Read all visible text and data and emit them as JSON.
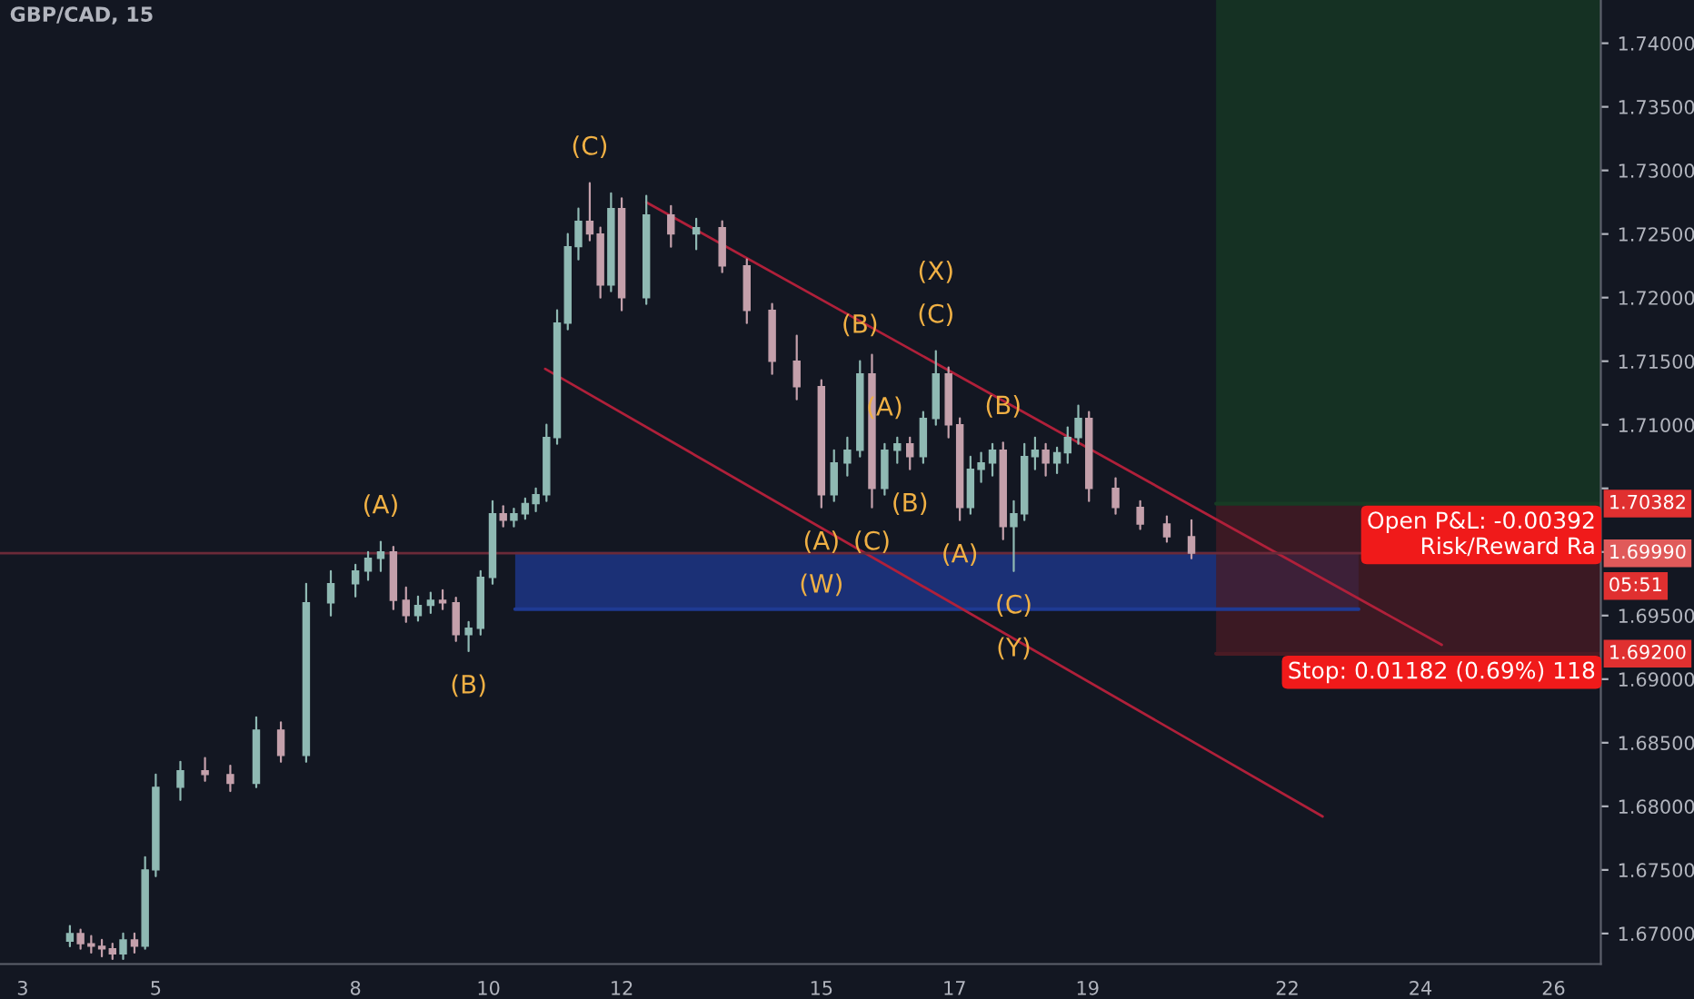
{
  "chart_data": {
    "type": "candlestick",
    "title": "GBP/CAD, 15",
    "xlim": [
      2.66,
      26.71
    ],
    "ylim": [
      1.6676,
      1.7434
    ],
    "xticks": [
      3,
      5,
      8,
      10,
      12,
      15,
      17,
      19,
      22,
      24,
      26
    ],
    "yticks": [
      {
        "value": 1.67,
        "label": "1.67000"
      },
      {
        "value": 1.675,
        "label": "1.67500"
      },
      {
        "value": 1.68,
        "label": "1.68000"
      },
      {
        "value": 1.685,
        "label": "1.68500"
      },
      {
        "value": 1.69,
        "label": "1.69000"
      },
      {
        "value": 1.695,
        "label": "1.69500"
      },
      {
        "value": 1.7,
        "label": null
      },
      {
        "value": 1.705,
        "label": null
      },
      {
        "value": 1.71,
        "label": "1.71000"
      },
      {
        "value": 1.715,
        "label": "1.71500"
      },
      {
        "value": 1.72,
        "label": "1.72000"
      },
      {
        "value": 1.725,
        "label": "1.72500"
      },
      {
        "value": 1.73,
        "label": "1.73000"
      },
      {
        "value": 1.735,
        "label": "1.73500"
      },
      {
        "value": 1.74,
        "label": "1.74000"
      }
    ],
    "grid": false,
    "series": [
      {
        "type": "line",
        "color": "#1f3a93",
        "x": [
          10.4,
          23.07
        ],
        "values": [
          1.6955,
          1.6955
        ],
        "upper": [
          1.7,
          1.7
        ],
        "lower": [
          1.6955,
          1.6955
        ]
      },
      {
        "type": "line",
        "color": "#173b24",
        "x": [
          20.93,
          26.71
        ],
        "values": [
          1.7038,
          1.7038
        ],
        "upper": [
          1.7434,
          1.7434
        ],
        "lower": [
          1.7038,
          1.7038
        ]
      },
      {
        "type": "line",
        "color": "#4a1b24",
        "x": [
          20.93,
          26.71
        ],
        "values": [
          1.692,
          1.692
        ],
        "upper": [
          1.7038,
          1.7038
        ],
        "lower": [
          1.692,
          1.692
        ]
      },
      {
        "type": "line",
        "color": "#b0203a",
        "x": [
          12.37,
          24.32
        ],
        "values": [
          1.7275,
          1.6927
        ]
      },
      {
        "type": "line",
        "color": "#b0203a",
        "x": [
          10.85,
          22.53
        ],
        "values": [
          1.7144,
          1.6792
        ]
      },
      {
        "x": [
          3.71,
          3.87,
          4.03,
          4.19,
          4.35,
          4.51,
          4.68,
          4.84,
          5.0,
          5.37,
          5.74,
          6.12,
          6.51,
          6.88,
          7.26,
          7.63,
          8.0,
          8.19,
          8.38,
          8.57,
          8.76,
          8.94,
          9.13,
          9.31,
          9.51,
          9.7,
          9.88,
          10.06,
          10.22,
          10.38,
          10.55,
          10.71,
          10.87,
          11.03,
          11.19,
          11.35,
          11.52,
          11.68,
          11.84,
          12.0,
          12.37,
          12.74,
          13.12,
          13.51,
          13.88,
          14.26,
          14.63,
          15.0,
          15.19,
          15.39,
          15.58,
          15.76,
          15.95,
          16.14,
          16.33,
          16.53,
          16.72,
          16.91,
          17.08,
          17.24,
          17.4,
          17.57,
          17.73,
          17.89,
          18.05,
          18.21,
          18.37,
          18.54,
          18.7,
          18.86,
          19.02,
          19.42,
          19.79,
          20.19,
          20.56
        ],
        "colors": [
          "#8fb9b3",
          "#c4a0ab",
          "#c4a0ab",
          "#c4a0ab",
          "#c4a0ab",
          "#8fb9b3",
          "#c4a0ab",
          "#8fb9b3",
          "#8fb9b3",
          "#8fb9b3",
          "#c4a0ab",
          "#c4a0ab",
          "#8fb9b3",
          "#c4a0ab",
          "#8fb9b3",
          "#8fb9b3",
          "#8fb9b3",
          "#8fb9b3",
          "#8fb9b3",
          "#c4a0ab",
          "#c4a0ab",
          "#8fb9b3",
          "#8fb9b3",
          "#c4a0ab",
          "#c4a0ab",
          "#8fb9b3",
          "#8fb9b3",
          "#8fb9b3",
          "#c4a0ab",
          "#8fb9b3",
          "#8fb9b3",
          "#8fb9b3",
          "#8fb9b3",
          "#8fb9b3",
          "#8fb9b3",
          "#8fb9b3",
          "#c4a0ab",
          "#c4a0ab",
          "#8fb9b3",
          "#c4a0ab",
          "#8fb9b3",
          "#c4a0ab",
          "#8fb9b3",
          "#c4a0ab",
          "#c4a0ab",
          "#c4a0ab",
          "#c4a0ab",
          "#c4a0ab",
          "#8fb9b3",
          "#8fb9b3",
          "#8fb9b3",
          "#c4a0ab",
          "#8fb9b3",
          "#8fb9b3",
          "#c4a0ab",
          "#8fb9b3",
          "#8fb9b3",
          "#c4a0ab",
          "#c4a0ab",
          "#8fb9b3",
          "#8fb9b3",
          "#8fb9b3",
          "#c4a0ab",
          "#8fb9b3",
          "#8fb9b3",
          "#8fb9b3",
          "#c4a0ab",
          "#8fb9b3",
          "#8fb9b3",
          "#8fb9b3",
          "#c4a0ab",
          "#c4a0ab",
          "#c4a0ab",
          "#c4a0ab",
          "#c4a0ab"
        ],
        "ohlc": [
          [
            1.6694,
            1.6706,
            1.669,
            1.67
          ],
          [
            1.67,
            1.6703,
            1.6688,
            1.6692
          ],
          [
            1.6692,
            1.6698,
            1.6685,
            1.669
          ],
          [
            1.669,
            1.6695,
            1.6682,
            1.6688
          ],
          [
            1.6688,
            1.6692,
            1.668,
            1.6684
          ],
          [
            1.6684,
            1.67,
            1.668,
            1.6695
          ],
          [
            1.6695,
            1.67,
            1.6685,
            1.669
          ],
          [
            1.669,
            1.676,
            1.6688,
            1.675
          ],
          [
            1.675,
            1.6825,
            1.6745,
            1.6815
          ],
          [
            1.6815,
            1.6835,
            1.6805,
            1.6828
          ],
          [
            1.6828,
            1.6838,
            1.682,
            1.6825
          ],
          [
            1.6825,
            1.6832,
            1.6812,
            1.6818
          ],
          [
            1.6818,
            1.687,
            1.6815,
            1.686
          ],
          [
            1.686,
            1.6866,
            1.6835,
            1.684
          ],
          [
            1.684,
            1.6975,
            1.6835,
            1.696
          ],
          [
            1.696,
            1.6985,
            1.695,
            1.6975
          ],
          [
            1.6975,
            1.699,
            1.6965,
            1.6985
          ],
          [
            1.6985,
            1.7,
            1.6978,
            1.6995
          ],
          [
            1.6995,
            1.7008,
            1.6985,
            1.7
          ],
          [
            1.7,
            1.7004,
            1.6955,
            1.6962
          ],
          [
            1.6962,
            1.6972,
            1.6945,
            1.695
          ],
          [
            1.695,
            1.6965,
            1.6946,
            1.6958
          ],
          [
            1.6958,
            1.6968,
            1.6952,
            1.6962
          ],
          [
            1.6962,
            1.697,
            1.6955,
            1.696
          ],
          [
            1.696,
            1.6964,
            1.693,
            1.6935
          ],
          [
            1.6935,
            1.6945,
            1.6922,
            1.694
          ],
          [
            1.694,
            1.6985,
            1.6935,
            1.698
          ],
          [
            1.698,
            1.704,
            1.6975,
            1.703
          ],
          [
            1.703,
            1.7036,
            1.702,
            1.7025
          ],
          [
            1.7025,
            1.7034,
            1.702,
            1.703
          ],
          [
            1.703,
            1.7042,
            1.7026,
            1.7038
          ],
          [
            1.7038,
            1.705,
            1.7032,
            1.7045
          ],
          [
            1.7045,
            1.71,
            1.704,
            1.709
          ],
          [
            1.709,
            1.719,
            1.7085,
            1.718
          ],
          [
            1.718,
            1.725,
            1.7175,
            1.724
          ],
          [
            1.724,
            1.727,
            1.723,
            1.726
          ],
          [
            1.726,
            1.729,
            1.7245,
            1.725
          ],
          [
            1.725,
            1.7255,
            1.72,
            1.721
          ],
          [
            1.721,
            1.7282,
            1.7205,
            1.727
          ],
          [
            1.727,
            1.7278,
            1.719,
            1.72
          ],
          [
            1.72,
            1.728,
            1.7195,
            1.7265
          ],
          [
            1.7265,
            1.7272,
            1.724,
            1.725
          ],
          [
            1.725,
            1.7262,
            1.7238,
            1.7255
          ],
          [
            1.7255,
            1.726,
            1.722,
            1.7225
          ],
          [
            1.7225,
            1.723,
            1.718,
            1.719
          ],
          [
            1.719,
            1.7195,
            1.714,
            1.715
          ],
          [
            1.715,
            1.717,
            1.712,
            1.713
          ],
          [
            1.713,
            1.7135,
            1.7035,
            1.7045
          ],
          [
            1.7045,
            1.708,
            1.704,
            1.707
          ],
          [
            1.707,
            1.709,
            1.706,
            1.708
          ],
          [
            1.708,
            1.715,
            1.7075,
            1.714
          ],
          [
            1.714,
            1.7155,
            1.7035,
            1.705
          ],
          [
            1.705,
            1.7085,
            1.7045,
            1.708
          ],
          [
            1.708,
            1.709,
            1.707,
            1.7085
          ],
          [
            1.7085,
            1.709,
            1.7065,
            1.7075
          ],
          [
            1.7075,
            1.711,
            1.707,
            1.7105
          ],
          [
            1.7105,
            1.7158,
            1.71,
            1.714
          ],
          [
            1.714,
            1.7145,
            1.709,
            1.71
          ],
          [
            1.71,
            1.7105,
            1.7025,
            1.7035
          ],
          [
            1.7035,
            1.7075,
            1.703,
            1.7065
          ],
          [
            1.7065,
            1.7078,
            1.7055,
            1.707
          ],
          [
            1.707,
            1.7085,
            1.706,
            1.708
          ],
          [
            1.708,
            1.7086,
            1.701,
            1.702
          ],
          [
            1.702,
            1.704,
            1.6985,
            1.703
          ],
          [
            1.703,
            1.7085,
            1.7025,
            1.7075
          ],
          [
            1.7075,
            1.709,
            1.7065,
            1.708
          ],
          [
            1.708,
            1.7085,
            1.706,
            1.707
          ],
          [
            1.707,
            1.7082,
            1.7062,
            1.7078
          ],
          [
            1.7078,
            1.7098,
            1.707,
            1.709
          ],
          [
            1.709,
            1.7115,
            1.7085,
            1.7105
          ],
          [
            1.7105,
            1.711,
            1.704,
            1.705
          ],
          [
            1.705,
            1.7058,
            1.703,
            1.7035
          ],
          [
            1.7035,
            1.704,
            1.7018,
            1.7022
          ],
          [
            1.7022,
            1.7028,
            1.7008,
            1.7012
          ],
          [
            1.7012,
            1.7025,
            1.6995,
            1.6999
          ]
        ]
      }
    ],
    "ref_lines": [
      {
        "axis": "y",
        "value": 1.6999,
        "label": "1.69990",
        "color": "#6b2a38"
      }
    ],
    "annotations": [
      {
        "text": "(C)",
        "x": 11.52,
        "y": 1.729
      },
      {
        "text": "(A)",
        "x": 8.38,
        "y": 1.7008
      },
      {
        "text": "(B)",
        "x": 9.7,
        "y": 1.6922
      },
      {
        "text": "(A)",
        "x": 15.0,
        "y": 1.7035
      },
      {
        "text": "(W)",
        "x": 15.0,
        "y": 1.7035
      },
      {
        "text": "(C)",
        "x": 15.76,
        "y": 1.7035
      },
      {
        "text": "(B)",
        "x": 15.58,
        "y": 1.715
      },
      {
        "text": "(A)",
        "x": 15.95,
        "y": 1.7085
      },
      {
        "text": "(B)",
        "x": 16.33,
        "y": 1.7065
      },
      {
        "text": "(C)",
        "x": 16.72,
        "y": 1.7158
      },
      {
        "text": "(X)",
        "x": 16.72,
        "y": 1.7158
      },
      {
        "text": "(A)",
        "x": 17.08,
        "y": 1.7025
      },
      {
        "text": "(B)",
        "x": 17.73,
        "y": 1.7086
      },
      {
        "text": "(C)",
        "x": 17.89,
        "y": 1.6985
      },
      {
        "text": "(Y)",
        "x": 17.89,
        "y": 1.6985
      },
      {
        "text": "Open P&L: -0.00392\nRisk/Reward Ra",
        "x": 26.71,
        "y": 1.7038
      },
      {
        "text": "Stop: 0.01182 (0.69%) 118",
        "x": 26.71,
        "y": 1.692
      },
      {
        "text": "1.70382",
        "x": 26.71,
        "y": 1.7038
      },
      {
        "text": "05:51",
        "x": 26.71,
        "y": 1.6999
      },
      {
        "text": "1.69200",
        "x": 26.71,
        "y": 1.692
      }
    ]
  }
}
